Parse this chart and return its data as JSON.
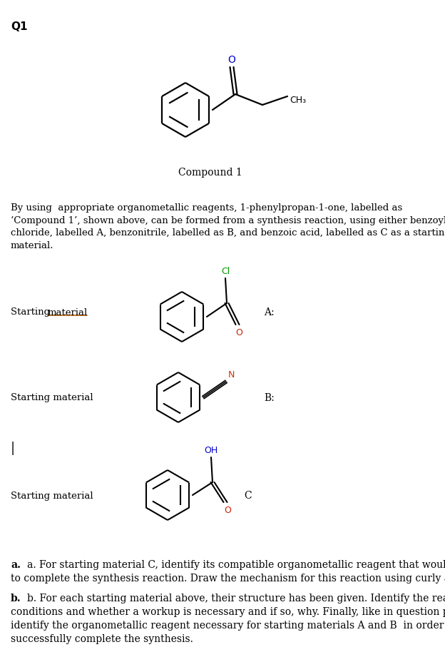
{
  "title": "Q1",
  "compound1_label": "Compound 1",
  "paragraph_lines": [
    "By using  appropriate organometallic reagents, 1-phenylpropan-1-one, labelled as",
    "‘Compound 1’, shown above, can be formed from a synthesis reaction, using either benzoyl",
    "chloride, labelled A, benzonitrile, labelled as B, and benzoic acid, labelled as C as a starting",
    "material."
  ],
  "A_label": "A:",
  "B_label": "B:",
  "C_label": "C",
  "pipe_label": "|",
  "question_a_lines": [
    "a. For starting material C, identify its compatible organometallic reagent that would be used",
    "to complete the synthesis reaction. Draw the mechanism for this reaction using curly arrows."
  ],
  "question_b_lines": [
    "b. For each starting material above, their structure has been given. Identify the reaction",
    "conditions and whether a workup is necessary and if so, why. Finally, like in question part a.,",
    "identify the organometallic reagent necessary for starting materials A and B  in order to",
    "successfully complete the synthesis."
  ],
  "bg_color": "#ffffff",
  "black": "#000000",
  "blue": "#0000cc",
  "red": "#cc2200",
  "green": "#009900",
  "orange_underline": "#cc6600"
}
